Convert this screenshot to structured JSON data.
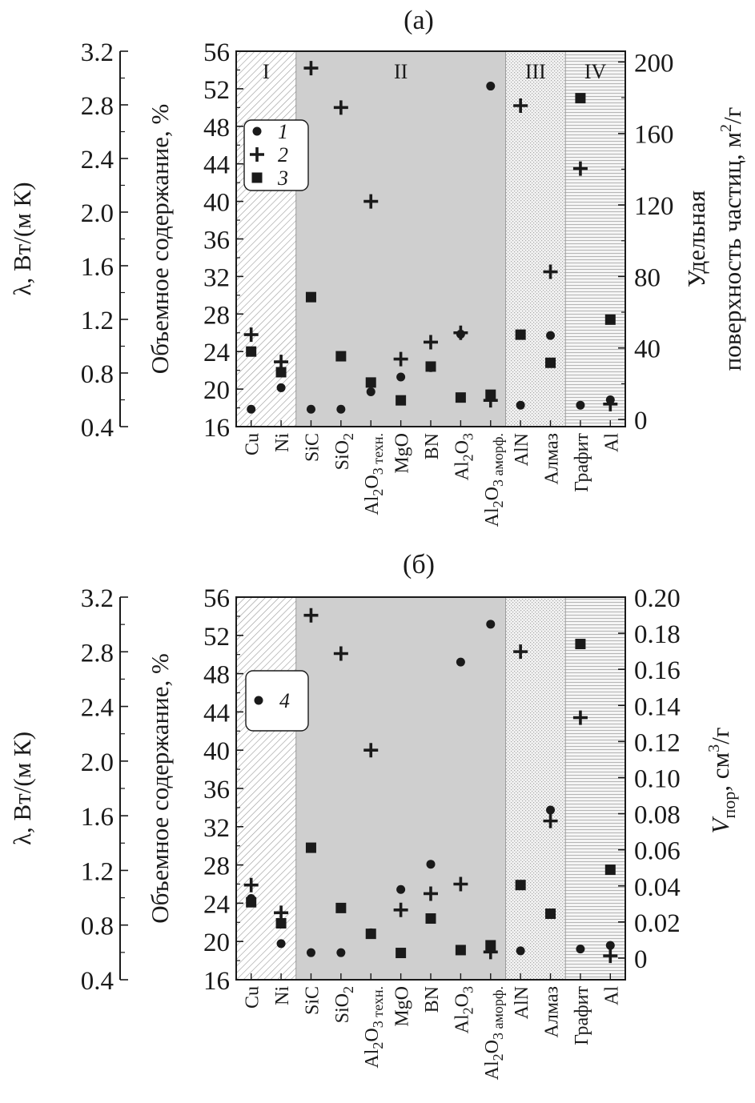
{
  "figure": {
    "colors": {
      "ink": "#1a1a1a",
      "region_ii": "#cfcfcf",
      "hatch": "#9a9a9a",
      "stipple": "#b0b0b0",
      "stripe": "#bdbdbd"
    }
  },
  "chart_data": [
    {
      "type": "scatter",
      "panel_label": "(а)",
      "categories": [
        {
          "id": "Cu",
          "label": "Cu"
        },
        {
          "id": "Ni",
          "label": "Ni"
        },
        {
          "id": "SiC",
          "label": "SiC"
        },
        {
          "id": "SiO2",
          "label": "SiO",
          "sub": "2"
        },
        {
          "id": "Al2O3tech",
          "label": "Al",
          "sub": "2",
          "label2": "O",
          "sub2": "3 техн."
        },
        {
          "id": "MgO",
          "label": "MgO"
        },
        {
          "id": "BN",
          "label": "BN"
        },
        {
          "id": "Al2O3",
          "label": "Al",
          "sub": "2",
          "label2": "O",
          "sub2": "3"
        },
        {
          "id": "Al2O3amorph",
          "label": "Al",
          "sub": "2",
          "label2": "O",
          "sub2": "3 аморф."
        },
        {
          "id": "AlN",
          "label": "AlN"
        },
        {
          "id": "diamond",
          "label": "Алмаз"
        },
        {
          "id": "graphite",
          "label": "Графит"
        },
        {
          "id": "Al",
          "label": "Al"
        }
      ],
      "regions": [
        {
          "label": "I",
          "from": "Cu",
          "to": "Ni",
          "pattern": "hatch"
        },
        {
          "label": "II",
          "from": "SiC",
          "to": "Al2O3amorph",
          "pattern": "gray"
        },
        {
          "label": "III",
          "from": "AlN",
          "to": "diamond",
          "pattern": "stipple"
        },
        {
          "label": "IV",
          "from": "graphite",
          "to": "Al",
          "pattern": "stripes"
        }
      ],
      "left_outer_axis": {
        "label": "λ, Вт/(м К)",
        "ticks": [
          "3.2",
          "2.8",
          "2.4",
          "2.0",
          "1.6",
          "1.2",
          "0.8",
          "0.4"
        ],
        "range": [
          0.4,
          3.2
        ]
      },
      "left_axis": {
        "label": "Объемное содержание, %",
        "ticks": [
          "56",
          "52",
          "48",
          "44",
          "40",
          "36",
          "32",
          "28",
          "24",
          "20",
          "16"
        ],
        "range": [
          16,
          56
        ]
      },
      "right_axis": {
        "label_line1": "Удельная",
        "label_line2": "поверхность частиц, м",
        "sup": "2",
        "label_tail": "/г",
        "ticks": [
          "200",
          "160",
          "120",
          "80",
          "40",
          "0"
        ],
        "range": [
          -4,
          206
        ]
      },
      "legend": {
        "position": "top-left",
        "entries": [
          {
            "marker": "circle",
            "label": "1"
          },
          {
            "marker": "plus",
            "label": "2"
          },
          {
            "marker": "square",
            "label": "3"
          }
        ]
      },
      "series": [
        {
          "marker": "circle",
          "axis": "lambda",
          "values": [
            0.53,
            0.69,
            0.53,
            0.53,
            0.66,
            0.77,
            0.84,
            1.09,
            2.94,
            0.56,
            1.08,
            0.56,
            0.6
          ]
        },
        {
          "marker": "plus",
          "axis": "left",
          "values": [
            25.8,
            22.9,
            54.2,
            50.0,
            40.0,
            23.2,
            25.0,
            26.0,
            18.8,
            50.2,
            32.5,
            43.5,
            18.4
          ]
        },
        {
          "marker": "square",
          "axis": "left",
          "values": [
            24.0,
            21.8,
            29.8,
            23.5,
            20.7,
            18.8,
            22.4,
            19.1,
            19.4,
            25.8,
            22.8,
            51.0,
            27.4
          ]
        }
      ]
    },
    {
      "type": "scatter",
      "panel_label": "(б)",
      "categories": [
        {
          "id": "Cu",
          "label": "Cu"
        },
        {
          "id": "Ni",
          "label": "Ni"
        },
        {
          "id": "SiC",
          "label": "SiC"
        },
        {
          "id": "SiO2",
          "label": "SiO",
          "sub": "2"
        },
        {
          "id": "Al2O3tech",
          "label": "Al",
          "sub": "2",
          "label2": "O",
          "sub2": "3 техн."
        },
        {
          "id": "MgO",
          "label": "MgO"
        },
        {
          "id": "BN",
          "label": "BN"
        },
        {
          "id": "Al2O3",
          "label": "Al",
          "sub": "2",
          "label2": "O",
          "sub2": "3"
        },
        {
          "id": "Al2O3amorph",
          "label": "Al",
          "sub": "2",
          "label2": "O",
          "sub2": "3 аморф."
        },
        {
          "id": "AlN",
          "label": "AlN"
        },
        {
          "id": "diamond",
          "label": "Алмаз"
        },
        {
          "id": "graphite",
          "label": "Графит"
        },
        {
          "id": "Al",
          "label": "Al"
        }
      ],
      "regions": [
        {
          "from": "Cu",
          "to": "Ni",
          "pattern": "hatch"
        },
        {
          "from": "SiC",
          "to": "Al2O3amorph",
          "pattern": "gray"
        },
        {
          "from": "AlN",
          "to": "diamond",
          "pattern": "stipple"
        },
        {
          "from": "graphite",
          "to": "Al",
          "pattern": "stripes"
        }
      ],
      "left_outer_axis": {
        "label": "λ, Вт/(м К)",
        "ticks": [
          "3.2",
          "2.8",
          "2.4",
          "2.0",
          "1.6",
          "1.2",
          "0.8",
          "0.4"
        ],
        "range": [
          0.4,
          3.2
        ]
      },
      "left_axis": {
        "label": "Объемное содержание, %",
        "ticks": [
          "56",
          "52",
          "48",
          "44",
          "40",
          "36",
          "32",
          "28",
          "24",
          "20",
          "16"
        ],
        "range": [
          16,
          56
        ]
      },
      "right_axis": {
        "label_main": "V",
        "label_sub": "пор",
        "label_tail": ", см",
        "sup": "3",
        "label_tail2": "/г",
        "ticks": [
          "0.20",
          "0.18",
          "0.16",
          "0.14",
          "0.12",
          "0.10",
          "0.08",
          "0.06",
          "0.04",
          "0.02",
          "0"
        ],
        "range": [
          -0.012,
          0.2
        ]
      },
      "legend": {
        "position": "top-left",
        "entries": [
          {
            "marker": "circle",
            "label": "4"
          }
        ]
      },
      "series": [
        {
          "marker": "circle",
          "axis": "right",
          "values": [
            0.033,
            0.008,
            0.003,
            0.003,
            0.014,
            0.038,
            0.052,
            0.164,
            0.185,
            0.004,
            0.082,
            0.005,
            0.007
          ]
        },
        {
          "marker": "plus",
          "axis": "left",
          "values": [
            25.9,
            23.0,
            54.1,
            50.1,
            40.0,
            23.3,
            25.0,
            26.0,
            18.9,
            50.3,
            32.6,
            43.4,
            18.5
          ]
        },
        {
          "marker": "square",
          "axis": "left",
          "values": [
            24.1,
            21.9,
            29.8,
            23.5,
            20.8,
            18.8,
            22.4,
            19.1,
            19.6,
            25.9,
            22.9,
            51.1,
            27.5
          ]
        }
      ]
    }
  ]
}
